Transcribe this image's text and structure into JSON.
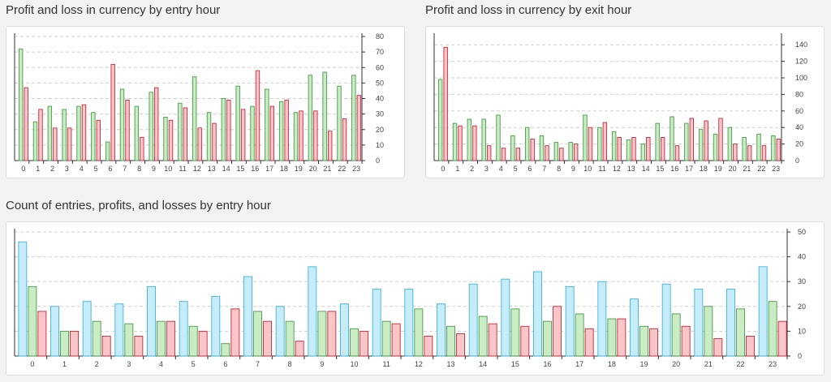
{
  "charts": [
    {
      "id": "c1",
      "title": "Profit and loss in currency by entry hour",
      "chart_data": {
        "type": "bar",
        "categories": [
          "0",
          "1",
          "2",
          "3",
          "4",
          "5",
          "6",
          "7",
          "8",
          "9",
          "10",
          "11",
          "12",
          "13",
          "14",
          "15",
          "16",
          "17",
          "18",
          "19",
          "20",
          "21",
          "22",
          "23"
        ],
        "series": [
          {
            "values": [
              72,
              25,
              35,
              33,
              35,
              31,
              12,
              46,
              35,
              44,
              28,
              37,
              54,
              31,
              40,
              48,
              35,
              46,
              38,
              31,
              55,
              57,
              48,
              55
            ]
          },
          {
            "values": [
              47,
              33,
              21,
              21,
              36,
              26,
              62,
              39,
              15,
              47,
              26,
              34,
              21,
              24,
              39,
              33,
              58,
              35,
              39,
              32,
              32,
              19,
              27,
              42
            ]
          }
        ],
        "ylim": [
          0,
          80
        ],
        "yticks": [
          0,
          10,
          20,
          30,
          40,
          50,
          60,
          70,
          80
        ],
        "grid": true
      }
    },
    {
      "id": "c2",
      "title": "Profit and loss in currency by exit hour",
      "chart_data": {
        "type": "bar",
        "categories": [
          "0",
          "1",
          "2",
          "3",
          "4",
          "5",
          "6",
          "7",
          "8",
          "9",
          "10",
          "11",
          "12",
          "13",
          "14",
          "15",
          "16",
          "17",
          "18",
          "19",
          "20",
          "21",
          "22",
          "23"
        ],
        "series": [
          {
            "values": [
              98,
              45,
              50,
              50,
              55,
              30,
              40,
              30,
              22,
              22,
              55,
              40,
              35,
              25,
              20,
              45,
              53,
              45,
              38,
              32,
              40,
              28,
              32,
              30
            ]
          },
          {
            "values": [
              137,
              42,
              42,
              18,
              15,
              15,
              26,
              18,
              15,
              20,
              40,
              46,
              28,
              28,
              28,
              28,
              18,
              51,
              48,
              51,
              20,
              18,
              18,
              26
            ]
          }
        ],
        "ylim": [
          0,
          150
        ],
        "yticks": [
          0,
          20,
          40,
          60,
          80,
          100,
          120,
          140
        ],
        "grid": true
      }
    },
    {
      "id": "c3",
      "title": "Count of entries, profits, and losses by entry hour",
      "chart_data": {
        "type": "bar",
        "categories": [
          "0",
          "1",
          "2",
          "3",
          "4",
          "5",
          "6",
          "7",
          "8",
          "9",
          "10",
          "11",
          "12",
          "13",
          "14",
          "15",
          "16",
          "17",
          "18",
          "19",
          "20",
          "21",
          "22",
          "23"
        ],
        "series": [
          {
            "values": [
              46,
              20,
              22,
              21,
              28,
              22,
              24,
              32,
              20,
              36,
              21,
              27,
              27,
              21,
              29,
              31,
              34,
              28,
              30,
              23,
              29,
              27,
              27,
              36
            ]
          },
          {
            "values": [
              28,
              10,
              14,
              13,
              14,
              12,
              5,
              18,
              14,
              18,
              11,
              14,
              19,
              12,
              16,
              19,
              14,
              17,
              15,
              12,
              17,
              20,
              19,
              22
            ]
          },
          {
            "values": [
              18,
              10,
              8,
              8,
              14,
              10,
              19,
              14,
              6,
              18,
              10,
              13,
              8,
              9,
              13,
              12,
              20,
              11,
              15,
              11,
              12,
              7,
              8,
              14
            ]
          }
        ],
        "ylim": [
          0,
          50
        ],
        "yticks": [
          0,
          10,
          20,
          30,
          40,
          50
        ],
        "grid": true
      }
    }
  ],
  "colors": {
    "green_fill": "#c9ecc4",
    "green_stroke": "#4a9a4a",
    "red_fill": "#f8c6c9",
    "red_stroke": "#c8283a",
    "blue_fill": "#c5ecf8",
    "blue_stroke": "#3cb4dc",
    "grid": "#cfcfcf",
    "axis": "#333333"
  }
}
